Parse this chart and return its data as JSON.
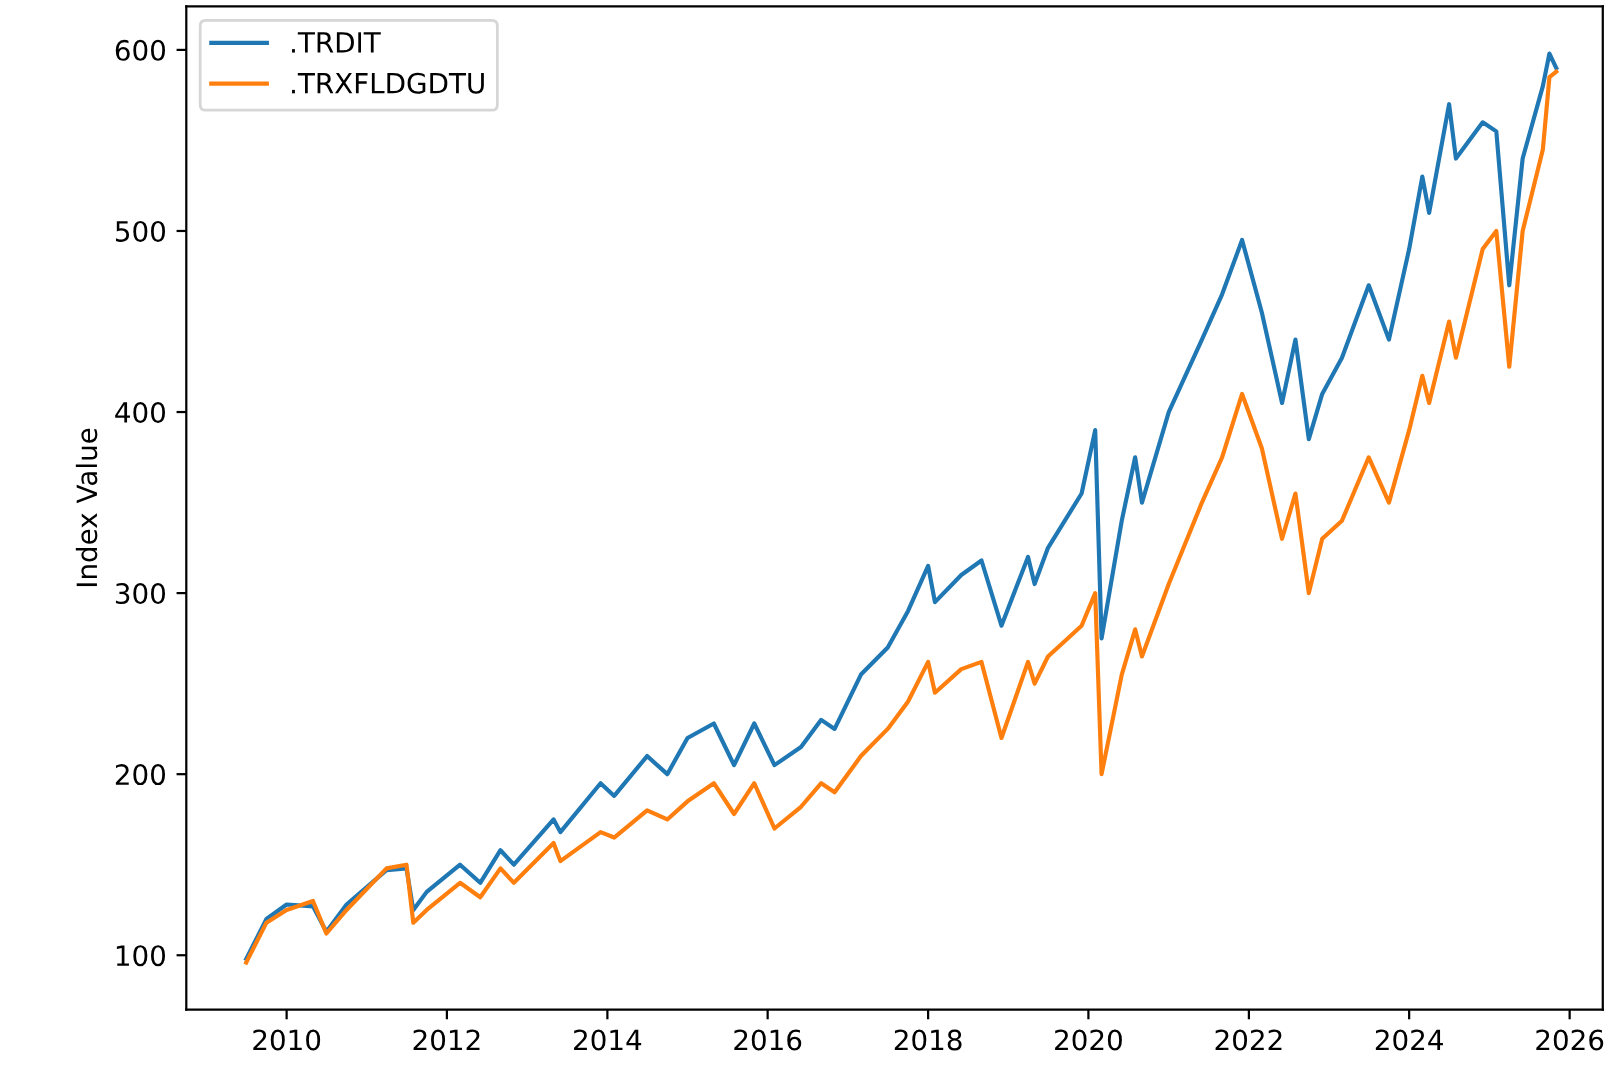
{
  "chart_data": {
    "type": "line",
    "ylabel": "Index Value",
    "legend": "top left",
    "grid": false,
    "x": [
      "2009-07",
      "2009-10",
      "2010-01",
      "2010-05",
      "2010-07",
      "2010-10",
      "2011-04",
      "2011-07",
      "2011-08",
      "2011-10",
      "2012-03",
      "2012-06",
      "2012-09",
      "2012-11",
      "2013-05",
      "2013-06",
      "2013-12",
      "2014-02",
      "2014-07",
      "2014-10",
      "2015-01",
      "2015-05",
      "2015-08",
      "2015-11",
      "2016-02",
      "2016-06",
      "2016-09",
      "2016-11",
      "2017-03",
      "2017-07",
      "2017-10",
      "2018-01",
      "2018-02",
      "2018-06",
      "2018-09",
      "2018-12",
      "2019-04",
      "2019-05",
      "2019-07",
      "2019-12",
      "2020-02",
      "2020-03",
      "2020-06",
      "2020-08",
      "2020-09",
      "2021-01",
      "2021-06",
      "2021-09",
      "2021-12",
      "2022-03",
      "2022-06",
      "2022-08",
      "2022-10",
      "2022-12",
      "2023-03",
      "2023-07",
      "2023-10",
      "2024-01",
      "2024-03",
      "2024-04",
      "2024-07",
      "2024-08",
      "2024-12",
      "2025-02",
      "2025-04",
      "2025-06",
      "2025-09",
      "2025-10",
      "2025-11"
    ],
    "series": [
      {
        "name": ".TRDIT",
        "color": "#1f77b4",
        "values": [
          98,
          120,
          128,
          127,
          113,
          128,
          147,
          148,
          125,
          135,
          150,
          140,
          158,
          150,
          175,
          168,
          195,
          188,
          210,
          200,
          220,
          228,
          205,
          228,
          205,
          215,
          230,
          225,
          255,
          270,
          290,
          315,
          295,
          310,
          318,
          282,
          320,
          305,
          325,
          355,
          390,
          275,
          340,
          375,
          350,
          400,
          440,
          465,
          495,
          455,
          405,
          440,
          385,
          410,
          430,
          470,
          440,
          490,
          530,
          510,
          570,
          540,
          560,
          555,
          470,
          540,
          580,
          598,
          590
        ]
      },
      {
        "name": ".TRXFLDGDTU",
        "color": "#ff7f0e",
        "values": [
          96,
          118,
          125,
          130,
          112,
          125,
          148,
          150,
          118,
          125,
          140,
          132,
          148,
          140,
          162,
          152,
          168,
          165,
          180,
          175,
          185,
          195,
          178,
          195,
          170,
          182,
          195,
          190,
          210,
          225,
          240,
          262,
          245,
          258,
          262,
          220,
          262,
          250,
          265,
          282,
          300,
          200,
          255,
          280,
          265,
          305,
          350,
          375,
          410,
          380,
          330,
          355,
          300,
          330,
          340,
          375,
          350,
          390,
          420,
          405,
          450,
          430,
          490,
          500,
          425,
          500,
          545,
          585,
          588
        ]
      }
    ],
    "xlim": [
      "2008-10",
      "2026-06"
    ],
    "xticks": [
      {
        "value": "2010",
        "label": "2010"
      },
      {
        "value": "2012",
        "label": "2012"
      },
      {
        "value": "2014",
        "label": "2014"
      },
      {
        "value": "2016",
        "label": "2016"
      },
      {
        "value": "2018",
        "label": "2018"
      },
      {
        "value": "2020",
        "label": "2020"
      },
      {
        "value": "2022",
        "label": "2022"
      },
      {
        "value": "2024",
        "label": "2024"
      },
      {
        "value": "2026",
        "label": "2026"
      }
    ],
    "ylim": [
      70,
      624
    ],
    "yticks": [
      100,
      200,
      300,
      400,
      500,
      600
    ]
  }
}
